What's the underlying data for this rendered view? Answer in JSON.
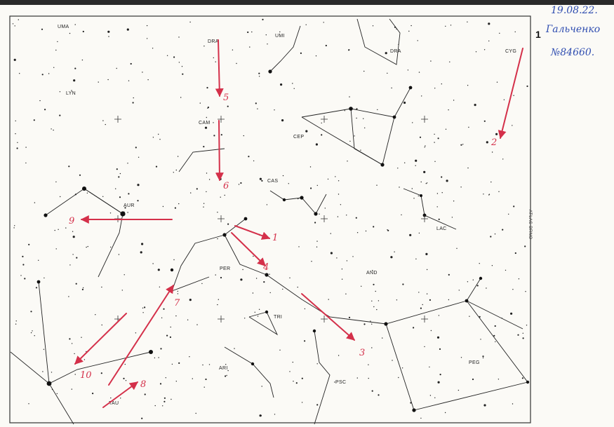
{
  "observation_note": {
    "date": "19.08.22.",
    "number": "1",
    "observer": "Гальченко",
    "id": "№84660."
  },
  "atlas_label": "ATLAS BRNO",
  "constellations": [
    {
      "name": "UMA"
    },
    {
      "name": "DRA"
    },
    {
      "name": "UMI"
    },
    {
      "name": "DRA"
    },
    {
      "name": "CYG"
    },
    {
      "name": "LYN"
    },
    {
      "name": "CAM"
    },
    {
      "name": "CEP"
    },
    {
      "name": "CAS"
    },
    {
      "name": "AUR"
    },
    {
      "name": "LAC"
    },
    {
      "name": "PER"
    },
    {
      "name": "AND"
    },
    {
      "name": "TRI"
    },
    {
      "name": "ARI"
    },
    {
      "name": "PEG"
    },
    {
      "name": "PSC"
    },
    {
      "name": "TAU"
    }
  ],
  "meteor_marks": [
    {
      "label": "1"
    },
    {
      "label": "2"
    },
    {
      "label": "3"
    },
    {
      "label": "4"
    },
    {
      "label": "5"
    },
    {
      "label": "6"
    },
    {
      "label": "7"
    },
    {
      "label": "8"
    },
    {
      "label": "9"
    },
    {
      "label": "10"
    }
  ],
  "colors": {
    "meteor_red": "#d4304a",
    "ink_blue": "#2f4db0",
    "star_black": "#111111",
    "paper": "#fbfaf6"
  }
}
